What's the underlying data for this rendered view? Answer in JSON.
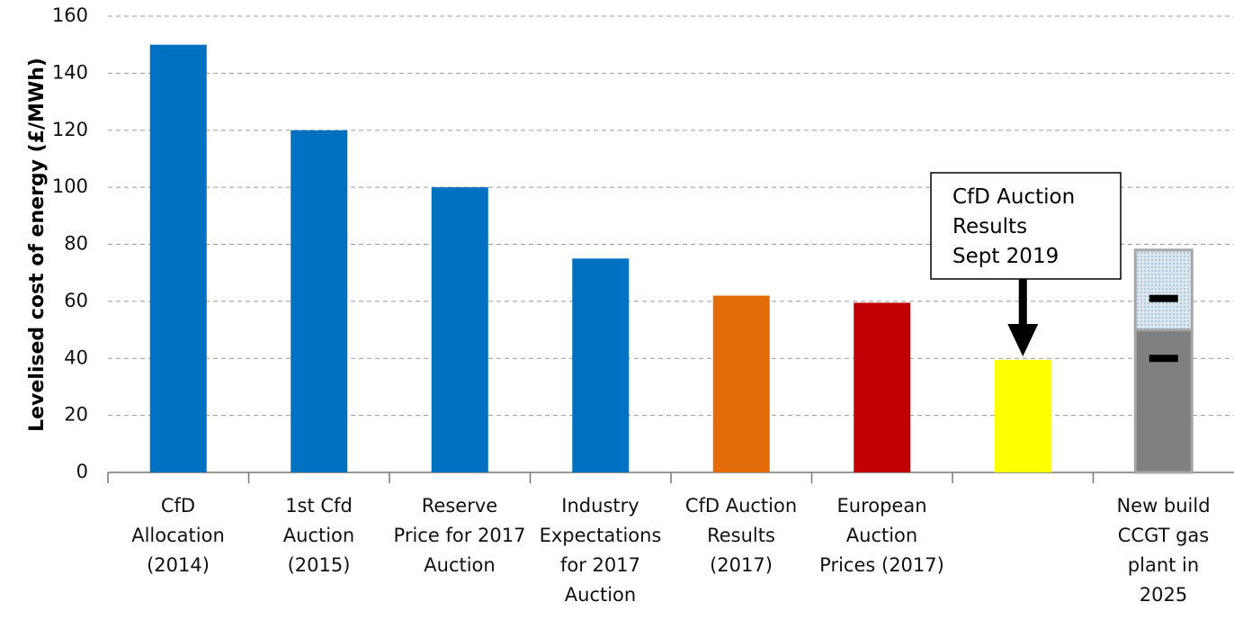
{
  "chart_data": {
    "type": "bar",
    "y_label": "Levelised cost of energy (£/MWh)",
    "categories": [
      "CfD\nAllocation\n(2014)",
      "1st Cfd\nAuction\n(2015)",
      "Reserve\nPrice for 2017\nAuction",
      "Industry\nExpectations\nfor 2017\nAuction",
      "CfD Auction\nResults\n(2017)",
      "European\nAuction\nPrices (2017)",
      null,
      "New build\nCCGT gas\nplant in\n2025"
    ],
    "series": [
      {
        "colors": [
          "#0070c0",
          "#0070c0",
          "#0070c0",
          "#0070c0",
          "#e36c0a",
          "#c00000",
          "#ffff00",
          "#808080"
        ],
        "values": [
          150,
          120,
          100,
          75,
          62,
          59.5,
          39.5,
          50
        ]
      },
      {
        "color": "#dde7f0",
        "pattern": "dotted",
        "values": [
          null,
          null,
          null,
          null,
          null,
          null,
          null,
          28
        ]
      }
    ],
    "markers": [
      40,
      61
    ],
    "annotation": "CfD Auction\nResults\nSept 2019",
    "ylim": [
      0,
      160
    ],
    "yticks": [
      0,
      20,
      40,
      60,
      80,
      100,
      120,
      140,
      160
    ],
    "grid": true
  }
}
